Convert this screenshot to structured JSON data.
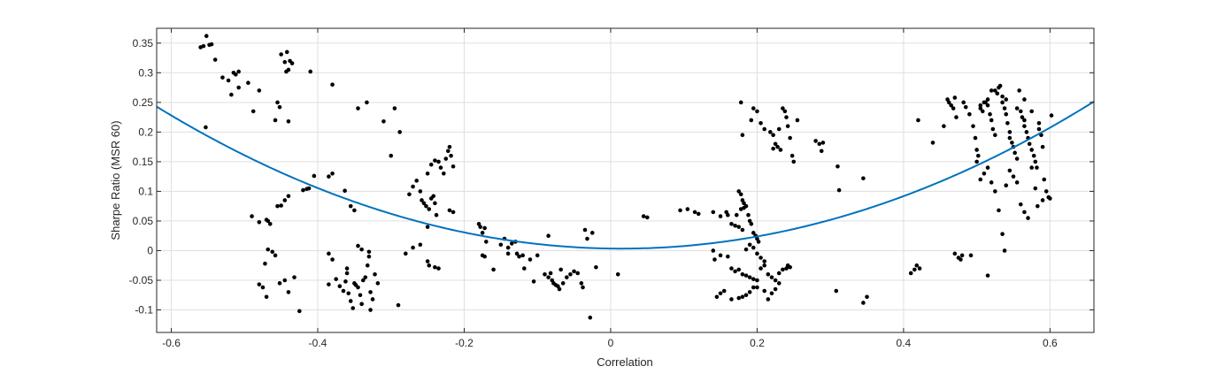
{
  "chart_data": {
    "type": "scatter",
    "title": "",
    "xlabel": "Correlation",
    "ylabel": "Sharpe Ratio (MSR 60)",
    "xlim": [
      -0.62,
      0.66
    ],
    "ylim": [
      -0.138,
      0.375
    ],
    "grid": true,
    "xticks": [
      -0.6,
      -0.4,
      -0.2,
      0,
      0.2,
      0.4,
      0.6
    ],
    "xtick_labels": [
      "-0.6",
      "-0.4",
      "-0.2",
      "0",
      "0.2",
      "0.4",
      "0.6"
    ],
    "yticks": [
      -0.1,
      -0.05,
      0,
      0.05,
      0.1,
      0.15,
      0.2,
      0.25,
      0.3,
      0.35
    ],
    "ytick_labels": [
      "-0.1",
      "-0.05",
      "0",
      "0.05",
      "0.1",
      "0.15",
      "0.2",
      "0.25",
      "0.3",
      "0.35"
    ],
    "fit_curve": {
      "type": "quadratic",
      "coefficients": {
        "a": 0.595,
        "b": -0.0171,
        "c": 0.0035
      },
      "color": "#0072BD"
    },
    "scatter_color": "#000000",
    "points": [
      [
        -0.556,
        0.345
      ],
      [
        -0.552,
        0.362
      ],
      [
        -0.548,
        0.347
      ],
      [
        -0.545,
        0.348
      ],
      [
        -0.56,
        0.343
      ],
      [
        -0.54,
        0.322
      ],
      [
        -0.553,
        0.208
      ],
      [
        -0.53,
        0.292
      ],
      [
        -0.522,
        0.287
      ],
      [
        -0.515,
        0.3
      ],
      [
        -0.512,
        0.297
      ],
      [
        -0.508,
        0.275
      ],
      [
        -0.518,
        0.263
      ],
      [
        -0.495,
        0.283
      ],
      [
        -0.48,
        0.27
      ],
      [
        -0.488,
        0.235
      ],
      [
        -0.508,
        0.302
      ],
      [
        -0.45,
        0.331
      ],
      [
        -0.445,
        0.318
      ],
      [
        -0.442,
        0.335
      ],
      [
        -0.438,
        0.32
      ],
      [
        -0.435,
        0.316
      ],
      [
        -0.44,
        0.305
      ],
      [
        -0.443,
        0.302
      ],
      [
        -0.455,
        0.25
      ],
      [
        -0.452,
        0.242
      ],
      [
        -0.458,
        0.22
      ],
      [
        -0.44,
        0.218
      ],
      [
        -0.41,
        0.302
      ],
      [
        -0.38,
        0.28
      ],
      [
        -0.345,
        0.24
      ],
      [
        -0.333,
        0.25
      ],
      [
        -0.38,
        0.13
      ],
      [
        -0.385,
        0.125
      ],
      [
        -0.363,
        0.101
      ],
      [
        -0.49,
        0.058
      ],
      [
        -0.48,
        0.048
      ],
      [
        -0.47,
        0.052
      ],
      [
        -0.468,
        0.05
      ],
      [
        -0.465,
        0.045
      ],
      [
        -0.455,
        0.075
      ],
      [
        -0.45,
        0.076
      ],
      [
        -0.445,
        0.085
      ],
      [
        -0.44,
        0.092
      ],
      [
        -0.42,
        0.102
      ],
      [
        -0.415,
        0.104
      ],
      [
        -0.412,
        0.105
      ],
      [
        -0.405,
        0.126
      ],
      [
        -0.468,
        0.002
      ],
      [
        -0.462,
        -0.002
      ],
      [
        -0.458,
        -0.008
      ],
      [
        -0.472,
        -0.022
      ],
      [
        -0.48,
        -0.057
      ],
      [
        -0.475,
        -0.062
      ],
      [
        -0.47,
        -0.078
      ],
      [
        -0.452,
        -0.055
      ],
      [
        -0.445,
        -0.05
      ],
      [
        -0.44,
        -0.07
      ],
      [
        -0.432,
        -0.045
      ],
      [
        -0.425,
        -0.102
      ],
      [
        -0.385,
        -0.005
      ],
      [
        -0.38,
        -0.015
      ],
      [
        -0.385,
        -0.057
      ],
      [
        -0.375,
        -0.048
      ],
      [
        -0.37,
        -0.06
      ],
      [
        -0.365,
        -0.068
      ],
      [
        -0.362,
        -0.052
      ],
      [
        -0.36,
        -0.038
      ],
      [
        -0.358,
        -0.072
      ],
      [
        -0.355,
        -0.085
      ],
      [
        -0.352,
        -0.097
      ],
      [
        -0.35,
        -0.055
      ],
      [
        -0.348,
        -0.058
      ],
      [
        -0.345,
        -0.062
      ],
      [
        -0.342,
        -0.075
      ],
      [
        -0.34,
        -0.09
      ],
      [
        -0.338,
        -0.05
      ],
      [
        -0.335,
        -0.045
      ],
      [
        -0.332,
        -0.025
      ],
      [
        -0.33,
        -0.01
      ],
      [
        -0.328,
        -0.07
      ],
      [
        -0.325,
        -0.082
      ],
      [
        -0.322,
        -0.04
      ],
      [
        -0.318,
        -0.055
      ],
      [
        -0.355,
        0.075
      ],
      [
        -0.35,
        0.068
      ],
      [
        -0.345,
        0.008
      ],
      [
        -0.34,
        0.002
      ],
      [
        -0.33,
        -0.002
      ],
      [
        -0.36,
        -0.03
      ],
      [
        -0.328,
        -0.1
      ],
      [
        -0.31,
        0.218
      ],
      [
        -0.295,
        0.24
      ],
      [
        -0.288,
        0.2
      ],
      [
        -0.3,
        0.16
      ],
      [
        -0.275,
        0.095
      ],
      [
        -0.27,
        0.108
      ],
      [
        -0.265,
        0.118
      ],
      [
        -0.26,
        0.1
      ],
      [
        -0.258,
        0.085
      ],
      [
        -0.255,
        0.08
      ],
      [
        -0.252,
        0.075
      ],
      [
        -0.248,
        0.07
      ],
      [
        -0.245,
        0.088
      ],
      [
        -0.242,
        0.092
      ],
      [
        -0.24,
        0.08
      ],
      [
        -0.238,
        0.06
      ],
      [
        -0.25,
        0.13
      ],
      [
        -0.245,
        0.145
      ],
      [
        -0.24,
        0.152
      ],
      [
        -0.235,
        0.15
      ],
      [
        -0.232,
        0.14
      ],
      [
        -0.228,
        0.13
      ],
      [
        -0.225,
        0.155
      ],
      [
        -0.222,
        0.168
      ],
      [
        -0.22,
        0.175
      ],
      [
        -0.218,
        0.16
      ],
      [
        -0.215,
        0.142
      ],
      [
        -0.22,
        0.068
      ],
      [
        -0.215,
        0.065
      ],
      [
        -0.28,
        -0.005
      ],
      [
        -0.27,
        0.005
      ],
      [
        -0.26,
        0.01
      ],
      [
        -0.25,
        0.04
      ],
      [
        -0.248,
        -0.025
      ],
      [
        -0.24,
        -0.028
      ],
      [
        -0.235,
        -0.03
      ],
      [
        -0.25,
        -0.018
      ],
      [
        -0.29,
        -0.092
      ],
      [
        -0.18,
        0.045
      ],
      [
        -0.178,
        0.04
      ],
      [
        -0.175,
        0.03
      ],
      [
        -0.172,
        0.038
      ],
      [
        -0.17,
        0.015
      ],
      [
        -0.175,
        -0.008
      ],
      [
        -0.172,
        -0.01
      ],
      [
        -0.16,
        -0.032
      ],
      [
        -0.15,
        0.01
      ],
      [
        -0.145,
        0.02
      ],
      [
        -0.14,
        0.005
      ],
      [
        -0.135,
        0.012
      ],
      [
        -0.13,
        0.015
      ],
      [
        -0.128,
        -0.005
      ],
      [
        -0.125,
        -0.01
      ],
      [
        -0.12,
        -0.008
      ],
      [
        -0.118,
        -0.03
      ],
      [
        -0.14,
        -0.005
      ],
      [
        -0.11,
        -0.015
      ],
      [
        -0.105,
        -0.052
      ],
      [
        -0.1,
        -0.008
      ],
      [
        -0.085,
        0.025
      ],
      [
        -0.09,
        -0.04
      ],
      [
        -0.085,
        -0.045
      ],
      [
        -0.082,
        -0.038
      ],
      [
        -0.08,
        -0.05
      ],
      [
        -0.078,
        -0.055
      ],
      [
        -0.075,
        -0.058
      ],
      [
        -0.072,
        -0.06
      ],
      [
        -0.07,
        -0.065
      ],
      [
        -0.068,
        -0.032
      ],
      [
        -0.065,
        -0.055
      ],
      [
        -0.06,
        -0.045
      ],
      [
        -0.055,
        -0.04
      ],
      [
        -0.05,
        -0.035
      ],
      [
        -0.045,
        -0.038
      ],
      [
        -0.04,
        -0.055
      ],
      [
        -0.035,
        0.035
      ],
      [
        -0.032,
        0.02
      ],
      [
        -0.038,
        -0.062
      ],
      [
        -0.025,
        0.03
      ],
      [
        -0.02,
        -0.028
      ],
      [
        -0.028,
        -0.113
      ],
      [
        0.01,
        -0.04
      ],
      [
        0.045,
        0.058
      ],
      [
        0.05,
        0.056
      ],
      [
        0.095,
        0.068
      ],
      [
        0.105,
        0.07
      ],
      [
        0.115,
        0.065
      ],
      [
        0.12,
        0.062
      ],
      [
        0.14,
        0.065
      ],
      [
        0.15,
        0.058
      ],
      [
        0.158,
        0.065
      ],
      [
        0.16,
        0.06
      ],
      [
        0.165,
        0.045
      ],
      [
        0.17,
        0.042
      ],
      [
        0.175,
        0.04
      ],
      [
        0.18,
        0.035
      ],
      [
        0.172,
        0.06
      ],
      [
        0.178,
        0.07
      ],
      [
        0.182,
        0.072
      ],
      [
        0.175,
        0.1
      ],
      [
        0.178,
        0.095
      ],
      [
        0.18,
        0.085
      ],
      [
        0.182,
        0.08
      ],
      [
        0.185,
        0.075
      ],
      [
        0.188,
        0.06
      ],
      [
        0.19,
        0.05
      ],
      [
        0.192,
        0.045
      ],
      [
        0.178,
        0.25
      ],
      [
        0.18,
        0.195
      ],
      [
        0.192,
        0.22
      ],
      [
        0.195,
        0.24
      ],
      [
        0.2,
        0.235
      ],
      [
        0.205,
        0.215
      ],
      [
        0.21,
        0.205
      ],
      [
        0.195,
        0.03
      ],
      [
        0.198,
        0.025
      ],
      [
        0.2,
        0.02
      ],
      [
        0.202,
        0.015
      ],
      [
        0.19,
        0.01
      ],
      [
        0.195,
        0.005
      ],
      [
        0.185,
        0.002
      ],
      [
        0.2,
        -0.005
      ],
      [
        0.205,
        -0.012
      ],
      [
        0.21,
        -0.018
      ],
      [
        0.14,
        0.0
      ],
      [
        0.142,
        -0.015
      ],
      [
        0.15,
        -0.008
      ],
      [
        0.16,
        -0.01
      ],
      [
        0.165,
        -0.03
      ],
      [
        0.17,
        -0.035
      ],
      [
        0.175,
        -0.032
      ],
      [
        0.18,
        -0.04
      ],
      [
        0.185,
        -0.042
      ],
      [
        0.19,
        -0.045
      ],
      [
        0.195,
        -0.048
      ],
      [
        0.2,
        -0.05
      ],
      [
        0.205,
        -0.03
      ],
      [
        0.21,
        -0.025
      ],
      [
        0.215,
        -0.04
      ],
      [
        0.22,
        -0.045
      ],
      [
        0.225,
        -0.05
      ],
      [
        0.23,
        -0.038
      ],
      [
        0.235,
        -0.032
      ],
      [
        0.24,
        -0.03
      ],
      [
        0.242,
        -0.025
      ],
      [
        0.245,
        -0.028
      ],
      [
        0.2,
        -0.062
      ],
      [
        0.21,
        -0.068
      ],
      [
        0.22,
        -0.072
      ],
      [
        0.225,
        -0.065
      ],
      [
        0.23,
        -0.055
      ],
      [
        0.175,
        -0.08
      ],
      [
        0.18,
        -0.078
      ],
      [
        0.185,
        -0.075
      ],
      [
        0.19,
        -0.07
      ],
      [
        0.145,
        -0.078
      ],
      [
        0.15,
        -0.072
      ],
      [
        0.155,
        -0.068
      ],
      [
        0.165,
        -0.082
      ],
      [
        0.215,
        -0.082
      ],
      [
        0.195,
        -0.062
      ],
      [
        0.218,
        0.2
      ],
      [
        0.222,
        0.195
      ],
      [
        0.225,
        0.18
      ],
      [
        0.228,
        0.175
      ],
      [
        0.232,
        0.17
      ],
      [
        0.235,
        0.24
      ],
      [
        0.238,
        0.235
      ],
      [
        0.24,
        0.225
      ],
      [
        0.242,
        0.21
      ],
      [
        0.245,
        0.19
      ],
      [
        0.248,
        0.16
      ],
      [
        0.25,
        0.15
      ],
      [
        0.255,
        0.22
      ],
      [
        0.222,
        0.172
      ],
      [
        0.23,
        0.205
      ],
      [
        0.28,
        0.185
      ],
      [
        0.285,
        0.18
      ],
      [
        0.288,
        0.168
      ],
      [
        0.29,
        0.182
      ],
      [
        0.31,
        0.142
      ],
      [
        0.312,
        0.102
      ],
      [
        0.345,
        0.122
      ],
      [
        0.308,
        -0.068
      ],
      [
        0.345,
        -0.088
      ],
      [
        0.35,
        -0.078
      ],
      [
        0.41,
        -0.038
      ],
      [
        0.415,
        -0.032
      ],
      [
        0.418,
        -0.025
      ],
      [
        0.422,
        -0.03
      ],
      [
        0.42,
        0.22
      ],
      [
        0.44,
        0.182
      ],
      [
        0.455,
        0.21
      ],
      [
        0.46,
        0.255
      ],
      [
        0.462,
        0.25
      ],
      [
        0.465,
        0.245
      ],
      [
        0.468,
        0.24
      ],
      [
        0.47,
        0.258
      ],
      [
        0.472,
        0.225
      ],
      [
        0.475,
        -0.012
      ],
      [
        0.478,
        -0.015
      ],
      [
        0.48,
        -0.008
      ],
      [
        0.482,
        0.25
      ],
      [
        0.485,
        0.242
      ],
      [
        0.49,
        0.23
      ],
      [
        0.492,
        -0.008
      ],
      [
        0.47,
        -0.005
      ],
      [
        0.495,
        0.21
      ],
      [
        0.498,
        0.19
      ],
      [
        0.5,
        0.17
      ],
      [
        0.502,
        0.16
      ],
      [
        0.5,
        0.15
      ],
      [
        0.505,
        0.245
      ],
      [
        0.505,
        0.24
      ],
      [
        0.508,
        0.235
      ],
      [
        0.51,
        0.25
      ],
      [
        0.512,
        0.25
      ],
      [
        0.515,
        0.255
      ],
      [
        0.515,
        0.245
      ],
      [
        0.518,
        0.23
      ],
      [
        0.52,
        0.22
      ],
      [
        0.522,
        0.205
      ],
      [
        0.525,
        0.195
      ],
      [
        0.525,
        0.27
      ],
      [
        0.528,
        0.265
      ],
      [
        0.53,
        0.275
      ],
      [
        0.532,
        0.278
      ],
      [
        0.535,
        0.26
      ],
      [
        0.535,
        0.25
      ],
      [
        0.538,
        0.24
      ],
      [
        0.54,
        0.23
      ],
      [
        0.542,
        0.215
      ],
      [
        0.545,
        0.2
      ],
      [
        0.545,
        0.19
      ],
      [
        0.548,
        0.182
      ],
      [
        0.55,
        0.175
      ],
      [
        0.552,
        0.165
      ],
      [
        0.555,
        0.155
      ],
      [
        0.558,
        0.27
      ],
      [
        0.56,
        0.235
      ],
      [
        0.562,
        0.225
      ],
      [
        0.565,
        0.21
      ],
      [
        0.568,
        0.2
      ],
      [
        0.57,
        0.19
      ],
      [
        0.572,
        0.18
      ],
      [
        0.575,
        0.17
      ],
      [
        0.578,
        0.16
      ],
      [
        0.58,
        0.15
      ],
      [
        0.582,
        0.14
      ],
      [
        0.585,
        0.215
      ],
      [
        0.588,
        0.195
      ],
      [
        0.59,
        0.175
      ],
      [
        0.592,
        0.12
      ],
      [
        0.595,
        0.1
      ],
      [
        0.598,
        0.09
      ],
      [
        0.6,
        0.088
      ],
      [
        0.602,
        0.228
      ],
      [
        0.505,
        0.12
      ],
      [
        0.51,
        0.13
      ],
      [
        0.515,
        0.14
      ],
      [
        0.52,
        0.115
      ],
      [
        0.525,
        0.1
      ],
      [
        0.53,
        0.068
      ],
      [
        0.535,
        0.028
      ],
      [
        0.538,
        0.0
      ],
      [
        0.515,
        -0.042
      ],
      [
        0.54,
        0.11
      ],
      [
        0.545,
        0.135
      ],
      [
        0.55,
        0.125
      ],
      [
        0.555,
        0.115
      ],
      [
        0.56,
        0.078
      ],
      [
        0.565,
        0.065
      ],
      [
        0.57,
        0.055
      ],
      [
        0.575,
        0.14
      ],
      [
        0.58,
        0.105
      ],
      [
        0.583,
        0.075
      ],
      [
        0.59,
        0.085
      ],
      [
        0.52,
        0.27
      ],
      [
        0.54,
        0.255
      ],
      [
        0.555,
        0.24
      ],
      [
        0.565,
        0.255
      ],
      [
        0.575,
        0.235
      ],
      [
        0.585,
        0.205
      ],
      [
        0.565,
        0.22
      ]
    ]
  }
}
